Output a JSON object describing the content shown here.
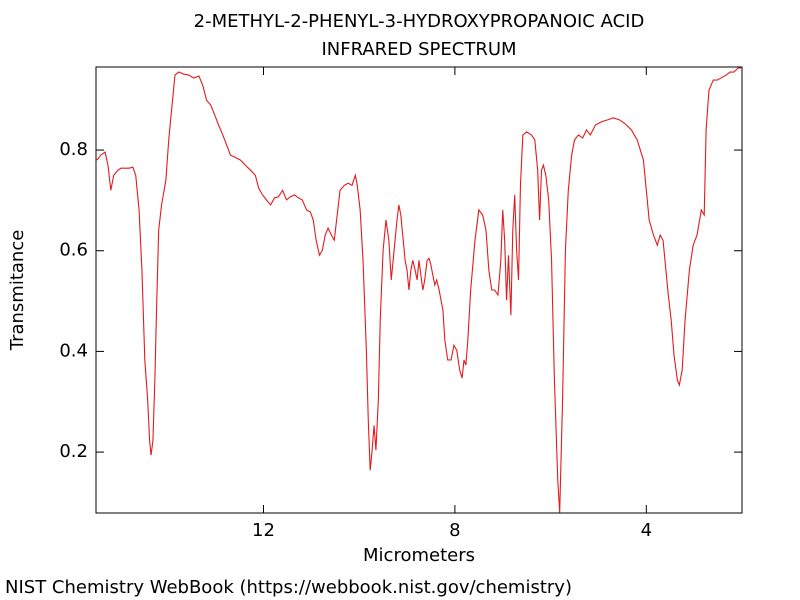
{
  "chart_data": {
    "type": "line",
    "title": "2-METHYL-2-PHENYL-3-HYDROXYPROPANOIC ACID",
    "subtitle": "INFRARED SPECTRUM",
    "x_label": "Micrometers",
    "y_label": "Transmitance",
    "color": "#e41a1c",
    "xlim": [
      15.5,
      2.0
    ],
    "xticks": [
      12,
      8,
      4
    ],
    "ylim": [
      0.079,
      0.965
    ],
    "yticks": [
      0.2,
      0.4,
      0.6,
      0.8
    ],
    "x": [
      15.48,
      15.4,
      15.31,
      15.25,
      15.19,
      15.13,
      15.04,
      14.98,
      14.9,
      14.81,
      14.73,
      14.67,
      14.6,
      14.54,
      14.48,
      14.42,
      14.38,
      14.35,
      14.31,
      14.27,
      14.23,
      14.19,
      14.13,
      14.04,
      13.98,
      13.92,
      13.85,
      13.77,
      13.67,
      13.56,
      13.46,
      13.35,
      13.27,
      13.19,
      13.1,
      13.02,
      12.94,
      12.85,
      12.77,
      12.69,
      12.56,
      12.48,
      12.38,
      12.27,
      12.17,
      12.1,
      12.02,
      11.94,
      11.85,
      11.77,
      11.69,
      11.6,
      11.52,
      11.44,
      11.35,
      11.27,
      11.19,
      11.1,
      11.02,
      10.96,
      10.9,
      10.83,
      10.77,
      10.71,
      10.65,
      10.58,
      10.52,
      10.46,
      10.4,
      10.31,
      10.23,
      10.15,
      10.08,
      10.04,
      9.98,
      9.92,
      9.85,
      9.81,
      9.77,
      9.73,
      9.69,
      9.65,
      9.6,
      9.56,
      9.5,
      9.44,
      9.38,
      9.33,
      9.27,
      9.21,
      9.17,
      9.13,
      9.08,
      9.04,
      9.0,
      8.96,
      8.92,
      8.88,
      8.83,
      8.79,
      8.75,
      8.71,
      8.67,
      8.63,
      8.58,
      8.54,
      8.5,
      8.46,
      8.42,
      8.38,
      8.33,
      8.29,
      8.25,
      8.21,
      8.15,
      8.08,
      8.02,
      7.96,
      7.9,
      7.85,
      7.81,
      7.77,
      7.73,
      7.67,
      7.58,
      7.5,
      7.42,
      7.35,
      7.29,
      7.23,
      7.17,
      7.1,
      7.04,
      7.0,
      6.96,
      6.92,
      6.88,
      6.83,
      6.79,
      6.75,
      6.71,
      6.67,
      6.63,
      6.58,
      6.5,
      6.4,
      6.33,
      6.27,
      6.23,
      6.19,
      6.15,
      6.1,
      6.04,
      5.98,
      5.92,
      5.85,
      5.81,
      5.75,
      5.69,
      5.63,
      5.56,
      5.5,
      5.42,
      5.33,
      5.25,
      5.17,
      5.06,
      4.94,
      4.81,
      4.69,
      4.56,
      4.44,
      4.31,
      4.19,
      4.06,
      3.94,
      3.85,
      3.77,
      3.71,
      3.65,
      3.6,
      3.54,
      3.48,
      3.42,
      3.35,
      3.31,
      3.25,
      3.19,
      3.1,
      3.02,
      2.94,
      2.85,
      2.79,
      2.75,
      2.69,
      2.6,
      2.52,
      2.44,
      2.33,
      2.25,
      2.17,
      2.08,
      2.02
    ],
    "values": [
      0.78,
      0.79,
      0.796,
      0.77,
      0.72,
      0.75,
      0.76,
      0.764,
      0.764,
      0.764,
      0.766,
      0.75,
      0.681,
      0.561,
      0.383,
      0.303,
      0.223,
      0.194,
      0.223,
      0.343,
      0.502,
      0.641,
      0.691,
      0.74,
      0.82,
      0.88,
      0.949,
      0.955,
      0.951,
      0.949,
      0.943,
      0.947,
      0.929,
      0.899,
      0.889,
      0.87,
      0.85,
      0.83,
      0.81,
      0.79,
      0.784,
      0.78,
      0.77,
      0.76,
      0.75,
      0.724,
      0.711,
      0.701,
      0.691,
      0.705,
      0.707,
      0.72,
      0.701,
      0.707,
      0.711,
      0.705,
      0.701,
      0.681,
      0.677,
      0.661,
      0.621,
      0.591,
      0.601,
      0.631,
      0.645,
      0.631,
      0.621,
      0.671,
      0.72,
      0.73,
      0.734,
      0.73,
      0.75,
      0.73,
      0.681,
      0.581,
      0.402,
      0.263,
      0.164,
      0.204,
      0.253,
      0.204,
      0.303,
      0.462,
      0.601,
      0.661,
      0.621,
      0.542,
      0.601,
      0.661,
      0.691,
      0.671,
      0.621,
      0.581,
      0.561,
      0.522,
      0.561,
      0.581,
      0.561,
      0.542,
      0.581,
      0.551,
      0.522,
      0.542,
      0.581,
      0.585,
      0.571,
      0.551,
      0.532,
      0.542,
      0.522,
      0.502,
      0.482,
      0.422,
      0.383,
      0.383,
      0.412,
      0.402,
      0.363,
      0.347,
      0.383,
      0.373,
      0.422,
      0.522,
      0.621,
      0.681,
      0.671,
      0.641,
      0.561,
      0.522,
      0.522,
      0.512,
      0.581,
      0.681,
      0.621,
      0.502,
      0.591,
      0.472,
      0.641,
      0.711,
      0.601,
      0.542,
      0.73,
      0.83,
      0.836,
      0.83,
      0.82,
      0.76,
      0.661,
      0.76,
      0.77,
      0.75,
      0.701,
      0.581,
      0.343,
      0.144,
      0.08,
      0.303,
      0.601,
      0.72,
      0.79,
      0.82,
      0.83,
      0.824,
      0.84,
      0.83,
      0.85,
      0.856,
      0.86,
      0.864,
      0.86,
      0.852,
      0.84,
      0.82,
      0.78,
      0.661,
      0.631,
      0.611,
      0.631,
      0.621,
      0.571,
      0.512,
      0.462,
      0.392,
      0.343,
      0.333,
      0.363,
      0.462,
      0.561,
      0.611,
      0.631,
      0.681,
      0.671,
      0.84,
      0.919,
      0.939,
      0.939,
      0.943,
      0.949,
      0.955,
      0.955,
      0.963,
      0.963
    ]
  },
  "footer": "NIST Chemistry WebBook (https://webbook.nist.gov/chemistry)"
}
